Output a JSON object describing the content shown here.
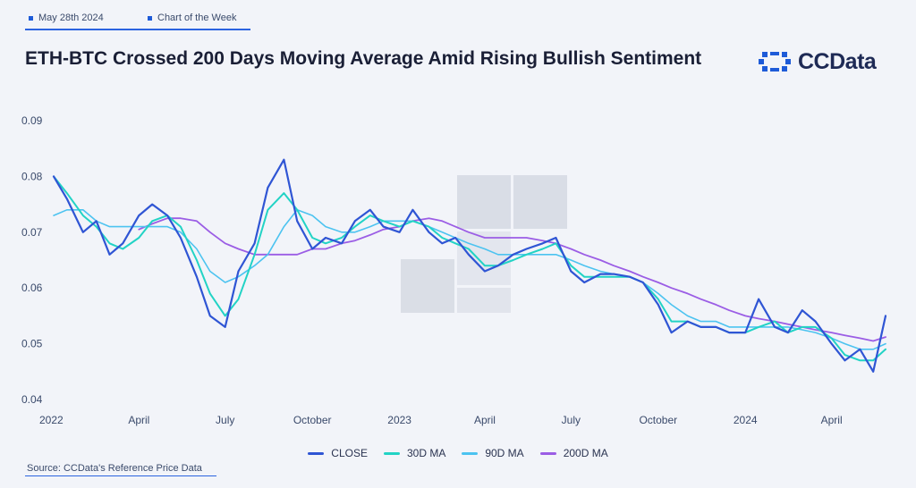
{
  "header": {
    "date_tag": "May 28th 2024",
    "series_tag": "Chart of the Week",
    "title": "ETH-BTC Crossed 200 Days Moving Average Amid Rising Bullish Sentiment"
  },
  "brand": {
    "name": "CCData"
  },
  "source": "Source: CCData's Reference Price Data",
  "colors": {
    "close": "#2f55d4",
    "ma30": "#22d3c5",
    "ma90": "#4cc3f0",
    "ma200": "#9b5de5",
    "accent": "#2b63e0",
    "text": "#1a1f36"
  },
  "chart_data": {
    "type": "line",
    "title": "ETH-BTC Crossed 200 Days Moving Average Amid Rising Bullish Sentiment",
    "xlabel": "",
    "ylabel": "",
    "x_ticks": [
      "2022",
      "April",
      "July",
      "October",
      "2023",
      "April",
      "July",
      "October",
      "2024",
      "April"
    ],
    "x_tick_dates": [
      "2022-01-01",
      "2022-04-01",
      "2022-07-01",
      "2022-10-01",
      "2023-01-01",
      "2023-04-01",
      "2023-07-01",
      "2023-10-01",
      "2024-01-01",
      "2024-04-01"
    ],
    "y_ticks": [
      "0.04",
      "0.05",
      "0.06",
      "0.07",
      "0.08",
      "0.09"
    ],
    "ylim": [
      0.04,
      0.09
    ],
    "xlim": [
      "2022-01-01",
      "2024-05-28"
    ],
    "grid": false,
    "legend_position": "bottom",
    "x": [
      "2022-01-01",
      "2022-01-15",
      "2022-02-01",
      "2022-02-15",
      "2022-03-01",
      "2022-03-15",
      "2022-04-01",
      "2022-04-15",
      "2022-05-01",
      "2022-05-15",
      "2022-06-01",
      "2022-06-15",
      "2022-07-01",
      "2022-07-15",
      "2022-08-01",
      "2022-08-15",
      "2022-09-01",
      "2022-09-15",
      "2022-10-01",
      "2022-10-15",
      "2022-11-01",
      "2022-11-15",
      "2022-12-01",
      "2022-12-15",
      "2023-01-01",
      "2023-01-15",
      "2023-02-01",
      "2023-02-15",
      "2023-03-01",
      "2023-03-15",
      "2023-04-01",
      "2023-04-15",
      "2023-05-01",
      "2023-05-15",
      "2023-06-01",
      "2023-06-15",
      "2023-07-01",
      "2023-07-15",
      "2023-08-01",
      "2023-08-15",
      "2023-09-01",
      "2023-09-15",
      "2023-10-01",
      "2023-10-15",
      "2023-11-01",
      "2023-11-15",
      "2023-12-01",
      "2023-12-15",
      "2024-01-01",
      "2024-01-15",
      "2024-02-01",
      "2024-02-15",
      "2024-03-01",
      "2024-03-15",
      "2024-04-01",
      "2024-04-15",
      "2024-05-01",
      "2024-05-15",
      "2024-05-28"
    ],
    "series": [
      {
        "name": "CLOSE",
        "values": [
          0.08,
          0.076,
          0.07,
          0.072,
          0.066,
          0.068,
          0.073,
          0.075,
          0.073,
          0.069,
          0.062,
          0.055,
          0.053,
          0.063,
          0.068,
          0.078,
          0.083,
          0.072,
          0.067,
          0.069,
          0.068,
          0.072,
          0.074,
          0.071,
          0.07,
          0.074,
          0.07,
          0.068,
          0.069,
          0.066,
          0.063,
          0.064,
          0.066,
          0.067,
          0.068,
          0.069,
          0.063,
          0.061,
          0.0625,
          0.0625,
          0.062,
          0.061,
          0.057,
          0.052,
          0.054,
          0.053,
          0.053,
          0.052,
          0.052,
          0.058,
          0.053,
          0.052,
          0.056,
          0.054,
          0.05,
          0.047,
          0.049,
          0.045,
          0.055
        ]
      },
      {
        "name": "30D MA",
        "values": [
          0.08,
          0.077,
          0.073,
          0.071,
          0.068,
          0.067,
          0.069,
          0.072,
          0.073,
          0.071,
          0.065,
          0.059,
          0.055,
          0.058,
          0.066,
          0.074,
          0.077,
          0.074,
          0.069,
          0.068,
          0.069,
          0.071,
          0.073,
          0.072,
          0.071,
          0.072,
          0.071,
          0.069,
          0.068,
          0.067,
          0.064,
          0.064,
          0.065,
          0.066,
          0.067,
          0.068,
          0.064,
          0.062,
          0.062,
          0.062,
          0.062,
          0.061,
          0.058,
          0.054,
          0.054,
          0.053,
          0.053,
          0.052,
          0.052,
          0.053,
          0.054,
          0.052,
          0.053,
          0.053,
          0.051,
          0.048,
          0.047,
          0.047,
          0.049
        ]
      },
      {
        "name": "90D MA",
        "values": [
          0.073,
          0.074,
          0.074,
          0.072,
          0.071,
          0.071,
          0.071,
          0.071,
          0.071,
          0.07,
          0.067,
          0.063,
          0.061,
          0.062,
          0.064,
          0.066,
          0.071,
          0.074,
          0.073,
          0.071,
          0.07,
          0.07,
          0.071,
          0.072,
          0.072,
          0.072,
          0.071,
          0.07,
          0.069,
          0.068,
          0.067,
          0.066,
          0.066,
          0.066,
          0.066,
          0.066,
          0.065,
          0.064,
          0.063,
          0.0625,
          0.062,
          0.061,
          0.059,
          0.057,
          0.055,
          0.054,
          0.054,
          0.053,
          0.053,
          0.053,
          0.053,
          0.053,
          0.0525,
          0.052,
          0.051,
          0.05,
          0.049,
          0.049,
          0.05
        ]
      },
      {
        "name": "200D MA",
        "values": [
          null,
          null,
          null,
          null,
          null,
          null,
          0.0705,
          0.0715,
          0.0725,
          0.0725,
          0.072,
          0.07,
          0.068,
          0.067,
          0.066,
          0.066,
          0.066,
          0.066,
          0.067,
          0.067,
          0.068,
          0.0685,
          0.0695,
          0.0705,
          0.071,
          0.072,
          0.0725,
          0.072,
          0.071,
          0.07,
          0.069,
          0.069,
          0.069,
          0.069,
          0.0685,
          0.068,
          0.067,
          0.066,
          0.065,
          0.064,
          0.063,
          0.062,
          0.061,
          0.06,
          0.059,
          0.058,
          0.057,
          0.056,
          0.055,
          0.0545,
          0.054,
          0.0535,
          0.053,
          0.0525,
          0.052,
          0.0515,
          0.051,
          0.0505,
          0.0512
        ]
      }
    ]
  }
}
